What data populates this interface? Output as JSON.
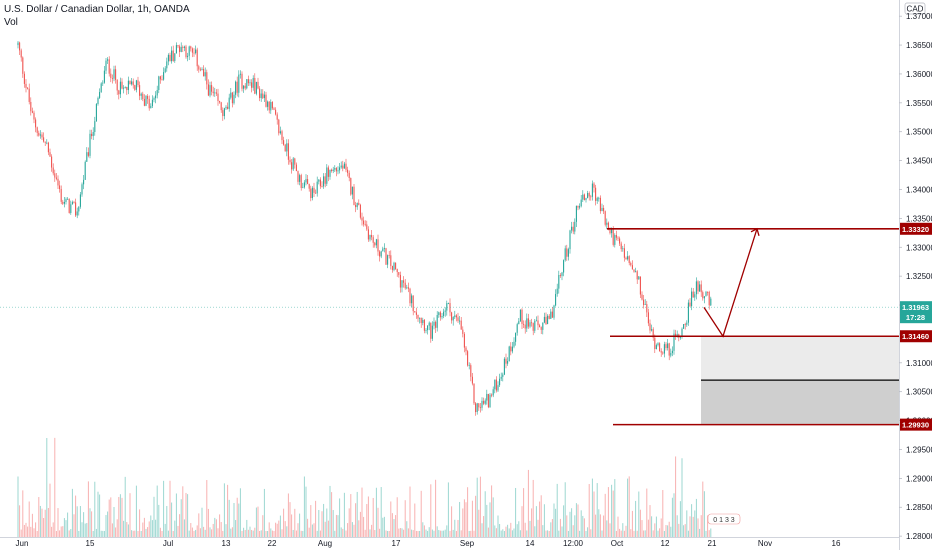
{
  "header": {
    "title": "U.S. Dollar / Canadian Dollar, 1h, OANDA",
    "vol_label": "Vol"
  },
  "currency_label": "CAD",
  "colors": {
    "up": "#26a69a",
    "down": "#ef5350",
    "level_line": "#a00000",
    "current_price": "#26a69a",
    "zone_upper": "#ebebeb",
    "zone_lower": "#cfcfcf"
  },
  "chart_data": {
    "type": "line",
    "title": "U.S. Dollar / Canadian Dollar, 1h, OANDA",
    "y_range": [
      1.2776,
      1.3728
    ],
    "y_ticks": [
      "1.37000",
      "1.36500",
      "1.36000",
      "1.35500",
      "1.35000",
      "1.34500",
      "1.34000",
      "1.33500",
      "1.33000",
      "1.32500",
      "1.32000",
      "1.31500",
      "1.31000",
      "1.30500",
      "1.30000",
      "1.29500",
      "1.29000",
      "1.28500",
      "1.28000"
    ],
    "x_ticks": [
      "Jun",
      "15",
      "Jul",
      "13",
      "22",
      "Aug",
      "17",
      "Sep",
      "14",
      "12:00",
      "Oct",
      "12",
      "21",
      "Nov",
      "16"
    ],
    "price_path": [
      {
        "x": "Jun",
        "y": 1.365
      },
      {
        "x": "",
        "y": 1.352
      },
      {
        "x": "",
        "y": 1.347
      },
      {
        "x": "",
        "y": 1.338
      },
      {
        "x": "",
        "y": 1.336
      },
      {
        "x": "",
        "y": 1.35
      },
      {
        "x": "15",
        "y": 1.362
      },
      {
        "x": "",
        "y": 1.357
      },
      {
        "x": "",
        "y": 1.358
      },
      {
        "x": "",
        "y": 1.354
      },
      {
        "x": "",
        "y": 1.362
      },
      {
        "x": "",
        "y": 1.365
      },
      {
        "x": "Jul",
        "y": 1.363
      },
      {
        "x": "",
        "y": 1.357
      },
      {
        "x": "",
        "y": 1.353
      },
      {
        "x": "",
        "y": 1.359
      },
      {
        "x": "13",
        "y": 1.358
      },
      {
        "x": "",
        "y": 1.355
      },
      {
        "x": "22",
        "y": 1.348
      },
      {
        "x": "",
        "y": 1.342
      },
      {
        "x": "",
        "y": 1.339
      },
      {
        "x": "",
        "y": 1.343
      },
      {
        "x": "Aug",
        "y": 1.344
      },
      {
        "x": "",
        "y": 1.337
      },
      {
        "x": "",
        "y": 1.331
      },
      {
        "x": "",
        "y": 1.328
      },
      {
        "x": "17",
        "y": 1.324
      },
      {
        "x": "",
        "y": 1.319
      },
      {
        "x": "",
        "y": 1.315
      },
      {
        "x": "",
        "y": 1.32
      },
      {
        "x": "",
        "y": 1.316
      },
      {
        "x": "Sep",
        "y": 1.302
      },
      {
        "x": "",
        "y": 1.304
      },
      {
        "x": "",
        "y": 1.31
      },
      {
        "x": "",
        "y": 1.318
      },
      {
        "x": "14",
        "y": 1.316
      },
      {
        "x": "",
        "y": 1.317
      },
      {
        "x": "12:00",
        "y": 1.328
      },
      {
        "x": "",
        "y": 1.338
      },
      {
        "x": "",
        "y": 1.34
      },
      {
        "x": "Oct",
        "y": 1.333
      },
      {
        "x": "",
        "y": 1.329
      },
      {
        "x": "",
        "y": 1.324
      },
      {
        "x": "12",
        "y": 1.314
      },
      {
        "x": "",
        "y": 1.312
      },
      {
        "x": "",
        "y": 1.316
      },
      {
        "x": "21",
        "y": 1.324
      },
      {
        "x": "",
        "y": 1.3196
      }
    ],
    "horizontal_levels": [
      {
        "label": "1.33320",
        "value": 1.3332
      },
      {
        "label": "1.31460",
        "value": 1.3146
      },
      {
        "label": "1.29930",
        "value": 1.2993
      }
    ],
    "zone_split": 1.307,
    "current_price": {
      "label": "1.31963",
      "value": 1.31963,
      "countdown": "17:28"
    },
    "projection": [
      {
        "x": "",
        "y": 1.3196
      },
      {
        "x": "",
        "y": 1.3146
      },
      {
        "x": "",
        "y": 1.3332
      }
    ],
    "volume_badge": "0 1 3 3",
    "grid": false
  }
}
